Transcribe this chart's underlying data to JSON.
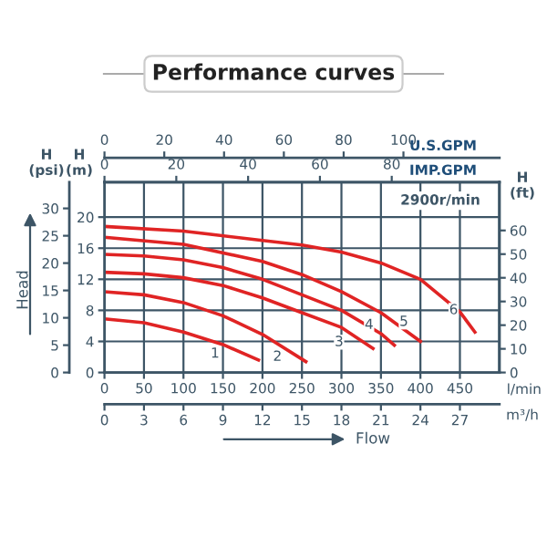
{
  "chart_data": [
    {
      "type": "line",
      "title": "Performance curves",
      "xlabel": "Flow",
      "xlim": [
        0,
        500
      ],
      "xticks": [
        0,
        50,
        100,
        150,
        200,
        250,
        300,
        350,
        400,
        450
      ],
      "ylim": [
        0,
        24.5
      ],
      "yticks": [
        0,
        4,
        8,
        12,
        16,
        20
      ],
      "y2label": "Head",
      "y2lim": [
        0,
        34.8
      ],
      "y2ticks": [
        0,
        5,
        10,
        15,
        20,
        25,
        30
      ],
      "y3label": "H\n(ft)",
      "y3lim": [
        0,
        80.4
      ],
      "y3ticks": [
        0,
        10,
        20,
        30,
        40,
        50,
        60
      ],
      "x2label": "U.S.GPM",
      "x2lim": [
        0,
        132.1
      ],
      "x2ticks": [
        0,
        20,
        40,
        60,
        80,
        100
      ],
      "grid": true,
      "legend": false,
      "line_style": "solid",
      "marker": "none",
      "series": [
        {
          "color": "#e02424",
          "x": [
            0,
            50,
            100,
            150,
            195
          ],
          "values": [
            6.9,
            6.4,
            5.2,
            3.6,
            1.6
          ]
        },
        {
          "color": "#e02424",
          "x": [
            0,
            50,
            100,
            150,
            200,
            255
          ],
          "values": [
            10.4,
            10.0,
            9.0,
            7.3,
            4.9,
            1.4
          ]
        },
        {
          "color": "#e02424",
          "x": [
            0,
            50,
            100,
            150,
            200,
            250,
            300,
            340
          ],
          "values": [
            12.9,
            12.7,
            12.2,
            11.2,
            9.6,
            7.7,
            5.8,
            3.1
          ]
        },
        {
          "color": "#e02424",
          "x": [
            0,
            50,
            100,
            150,
            200,
            250,
            300,
            350,
            367
          ],
          "values": [
            15.2,
            15.0,
            14.5,
            13.5,
            12.0,
            10.0,
            8.0,
            5.0,
            3.5
          ]
        },
        {
          "color": "#e02424",
          "x": [
            0,
            100,
            200,
            250,
            300,
            350,
            400
          ],
          "values": [
            17.4,
            16.5,
            14.3,
            12.6,
            10.4,
            7.7,
            4.0
          ]
        },
        {
          "color": "#e02424",
          "x": [
            0,
            100,
            200,
            250,
            300,
            350,
            400,
            450,
            469
          ],
          "values": [
            18.8,
            18.2,
            17.0,
            16.4,
            15.5,
            14.1,
            12.0,
            7.8,
            5.2
          ]
        }
      ],
      "annotations": [
        "l/min",
        "H\n(m)",
        "2900r/min",
        "H\n(psi)",
        "IMP.GPM",
        "0",
        "20",
        "40",
        "60",
        "80",
        "m³/h",
        "0",
        "3",
        "6",
        "9",
        "12",
        "15",
        "18",
        "21",
        "24",
        "27",
        {
          "text": "1",
          "x": 140,
          "y": 2.4
        },
        {
          "text": "2",
          "x": 219,
          "y": 2.0
        },
        {
          "text": "3",
          "x": 297,
          "y": 3.9
        },
        {
          "text": "4",
          "x": 335,
          "y": 6.1
        },
        {
          "text": "5",
          "x": 379,
          "y": 6.5
        },
        {
          "text": "6",
          "x": 442,
          "y": 8.0
        }
      ]
    }
  ]
}
